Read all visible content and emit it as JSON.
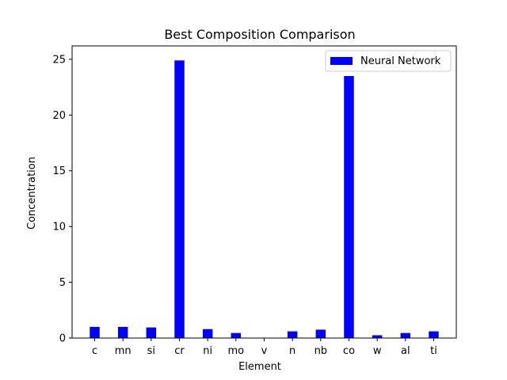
{
  "chart_data": {
    "type": "bar",
    "title": "Best Composition Comparison",
    "xlabel": "Element",
    "ylabel": "Concentration",
    "categories": [
      "c",
      "mn",
      "si",
      "cr",
      "ni",
      "mo",
      "v",
      "n",
      "nb",
      "co",
      "w",
      "al",
      "ti"
    ],
    "series": [
      {
        "name": "Neural Network",
        "color": "#0000ff",
        "values": [
          1.0,
          1.0,
          0.95,
          24.9,
          0.8,
          0.45,
          0.0,
          0.6,
          0.75,
          23.5,
          0.25,
          0.45,
          0.6
        ]
      }
    ],
    "ylim": [
      0,
      26.2
    ],
    "yticks": [
      0,
      5,
      10,
      15,
      20,
      25
    ],
    "ytick_labels": [
      "0",
      "5",
      "10",
      "15",
      "20",
      "25"
    ],
    "grid": false,
    "legend_position": "top-right"
  }
}
